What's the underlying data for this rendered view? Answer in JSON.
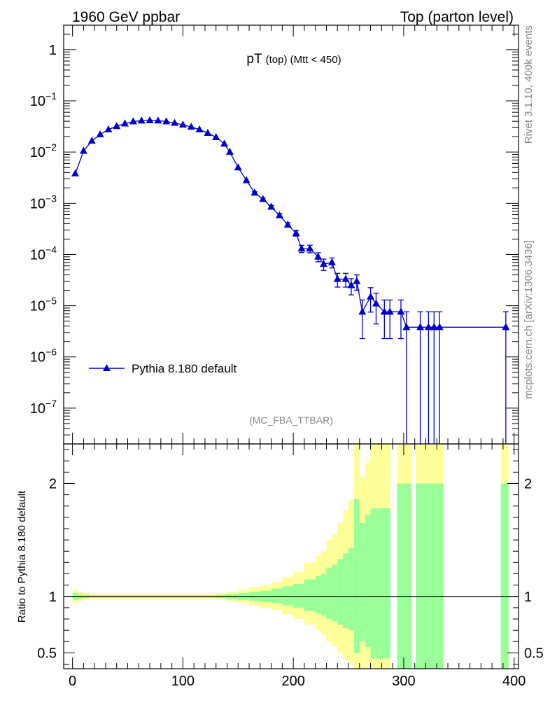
{
  "header": {
    "left": "1960 GeV ppbar",
    "right": "Top (parton level)"
  },
  "title": {
    "main": "pT",
    "sub": "(top) (Mtt < 450)"
  },
  "analysis_id": "(MC_FBA_TTBAR)",
  "side_text": {
    "rivet": "Rivet 3.1.10,  400k events",
    "mcplots": "mcplots.cern.ch [arXiv:1306.3436]"
  },
  "legend": {
    "label": "Pythia 8.180 default"
  },
  "ratio_ylabel": "Ratio to Pythia 8.180 default",
  "chart_data": {
    "type": "line",
    "title": "pT (top) (Mtt < 450)",
    "xlabel": "",
    "ylabel": "",
    "xlim": [
      -8,
      404
    ],
    "ylim": [
      2e-08,
      3.0
    ],
    "yscale": "log",
    "x_ticks": [
      "0",
      "100",
      "200",
      "300",
      "400"
    ],
    "y_ticks": [
      "1",
      "10^-1",
      "10^-2",
      "10^-3",
      "10^-4",
      "10^-5",
      "10^-6",
      "10^-7"
    ],
    "series": [
      {
        "name": "Pythia 8.180 default",
        "color": "#0000cc",
        "x": [
          2.5,
          10,
          17.5,
          25,
          32.5,
          40,
          47.5,
          55,
          62.5,
          70,
          77.5,
          85,
          92.5,
          100,
          107.5,
          115,
          122.5,
          130,
          137.5,
          142.5,
          150,
          157.5,
          165,
          172.5,
          180,
          187.5,
          195,
          202.5,
          207.5,
          215,
          222.5,
          227.5,
          235,
          240,
          247.5,
          252.5,
          257.5,
          262.5,
          270,
          275,
          282.5,
          287.5,
          297.5,
          302.5,
          315,
          322.5,
          327.5,
          332.5,
          392.5
        ],
        "y": [
          0.0038,
          0.0105,
          0.0165,
          0.022,
          0.0275,
          0.032,
          0.036,
          0.0395,
          0.041,
          0.0415,
          0.041,
          0.0395,
          0.037,
          0.034,
          0.031,
          0.0275,
          0.0235,
          0.0195,
          0.0145,
          0.01,
          0.005,
          0.0028,
          0.0016,
          0.0012,
          0.00085,
          0.00058,
          0.00038,
          0.00026,
          0.00013,
          0.00013,
          9e-05,
          6.5e-05,
          7e-05,
          3.3e-05,
          3.3e-05,
          2.5e-05,
          3e-05,
          7.6e-06,
          1.5e-05,
          1.1e-05,
          7.6e-06,
          7.6e-06,
          7.6e-06,
          3.8e-06,
          3.8e-06,
          3.8e-06,
          3.8e-06,
          3.8e-06,
          3.8e-06
        ],
        "err": [
          0.02,
          0.01,
          0.01,
          0.01,
          0.01,
          0.01,
          0.01,
          0.01,
          0.01,
          0.01,
          0.01,
          0.01,
          0.01,
          0.01,
          0.01,
          0.01,
          0.01,
          0.02,
          0.02,
          0.02,
          0.03,
          0.04,
          0.05,
          0.06,
          0.07,
          0.08,
          0.1,
          0.12,
          0.16,
          0.17,
          0.2,
          0.25,
          0.22,
          0.3,
          0.3,
          0.35,
          0.33,
          0.7,
          0.5,
          0.6,
          0.7,
          0.7,
          0.7,
          1.0,
          1.0,
          1.0,
          1.0,
          1.0,
          1.0
        ]
      }
    ],
    "ratio": {
      "ylabel": "Ratio to Pythia 8.180 default",
      "ylim": [
        0.36,
        2.35
      ],
      "y_ticks": [
        "0.5",
        "1",
        "2"
      ],
      "stat_band_color": "#99ff99",
      "total_band_color": "#ffff99",
      "bins": [
        {
          "x0": 0,
          "x1": 5,
          "g_lo": 0.97,
          "g_hi": 1.03,
          "y_lo": 0.94,
          "y_hi": 1.06
        },
        {
          "x0": 5,
          "x1": 10,
          "g_lo": 0.98,
          "g_hi": 1.02,
          "y_lo": 0.96,
          "y_hi": 1.04
        },
        {
          "x0": 10,
          "x1": 15,
          "g_lo": 0.985,
          "g_hi": 1.015,
          "y_lo": 0.97,
          "y_hi": 1.03
        },
        {
          "x0": 15,
          "x1": 130,
          "g_lo": 0.99,
          "g_hi": 1.01,
          "y_lo": 0.98,
          "y_hi": 1.02
        },
        {
          "x0": 130,
          "x1": 140,
          "g_lo": 0.985,
          "g_hi": 1.015,
          "y_lo": 0.97,
          "y_hi": 1.03
        },
        {
          "x0": 140,
          "x1": 150,
          "g_lo": 0.98,
          "g_hi": 1.02,
          "y_lo": 0.96,
          "y_hi": 1.04
        },
        {
          "x0": 150,
          "x1": 160,
          "g_lo": 0.97,
          "g_hi": 1.03,
          "y_lo": 0.94,
          "y_hi": 1.06
        },
        {
          "x0": 160,
          "x1": 170,
          "g_lo": 0.96,
          "g_hi": 1.04,
          "y_lo": 0.92,
          "y_hi": 1.08
        },
        {
          "x0": 170,
          "x1": 180,
          "g_lo": 0.95,
          "g_hi": 1.05,
          "y_lo": 0.9,
          "y_hi": 1.1
        },
        {
          "x0": 180,
          "x1": 190,
          "g_lo": 0.94,
          "g_hi": 1.07,
          "y_lo": 0.88,
          "y_hi": 1.13
        },
        {
          "x0": 190,
          "x1": 200,
          "g_lo": 0.92,
          "g_hi": 1.09,
          "y_lo": 0.84,
          "y_hi": 1.17
        },
        {
          "x0": 200,
          "x1": 210,
          "g_lo": 0.9,
          "g_hi": 1.11,
          "y_lo": 0.8,
          "y_hi": 1.22
        },
        {
          "x0": 210,
          "x1": 220,
          "g_lo": 0.87,
          "g_hi": 1.15,
          "y_lo": 0.75,
          "y_hi": 1.3
        },
        {
          "x0": 220,
          "x1": 225,
          "g_lo": 0.85,
          "g_hi": 1.18,
          "y_lo": 0.7,
          "y_hi": 1.36
        },
        {
          "x0": 225,
          "x1": 230,
          "g_lo": 0.83,
          "g_hi": 1.2,
          "y_lo": 0.66,
          "y_hi": 1.4
        },
        {
          "x0": 230,
          "x1": 235,
          "g_lo": 0.8,
          "g_hi": 1.25,
          "y_lo": 0.6,
          "y_hi": 1.5
        },
        {
          "x0": 235,
          "x1": 240,
          "g_lo": 0.78,
          "g_hi": 1.28,
          "y_lo": 0.56,
          "y_hi": 1.55
        },
        {
          "x0": 240,
          "x1": 245,
          "g_lo": 0.75,
          "g_hi": 1.33,
          "y_lo": 0.5,
          "y_hi": 1.65
        },
        {
          "x0": 245,
          "x1": 250,
          "g_lo": 0.72,
          "g_hi": 1.38,
          "y_lo": 0.44,
          "y_hi": 1.76
        },
        {
          "x0": 250,
          "x1": 255,
          "g_lo": 0.7,
          "g_hi": 1.43,
          "y_lo": 0.4,
          "y_hi": 1.85
        },
        {
          "x0": 255,
          "x1": 260,
          "g_lo": 0.5,
          "g_hi": 1.86,
          "y_lo": 0.36,
          "y_hi": 2.35
        },
        {
          "x0": 260,
          "x1": 265,
          "g_lo": 0.6,
          "g_hi": 1.65,
          "y_lo": 0.36,
          "y_hi": 2.05
        },
        {
          "x0": 265,
          "x1": 270,
          "g_lo": 0.55,
          "g_hi": 1.72,
          "y_lo": 0.36,
          "y_hi": 2.2
        },
        {
          "x0": 270,
          "x1": 288,
          "g_lo": 0.45,
          "g_hi": 1.78,
          "y_lo": 0.36,
          "y_hi": 2.35
        },
        {
          "x0": 294,
          "x1": 307,
          "g_lo": 0.36,
          "g_hi": 2.0,
          "y_lo": 0.36,
          "y_hi": 2.35
        },
        {
          "x0": 311,
          "x1": 336,
          "g_lo": 0.36,
          "g_hi": 2.0,
          "y_lo": 0.36,
          "y_hi": 2.35
        },
        {
          "x0": 388,
          "x1": 395,
          "g_lo": 0.36,
          "g_hi": 2.0,
          "y_lo": 0.36,
          "y_hi": 2.35
        }
      ]
    }
  }
}
